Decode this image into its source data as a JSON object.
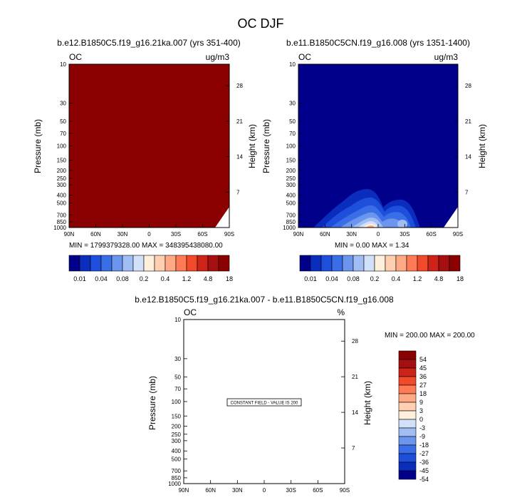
{
  "figure": {
    "title": "OC DJF",
    "panel_left_title": "b.e12.B1850C5.f19_g16.21ka.007 (yrs 351-400)",
    "panel_right_title": "b.e11.B1850C5CN.f19_g16.008 (yrs 1351-1400)",
    "panel_diff_title": "b.e12.B1850C5.f19_g16.21ka.007 - b.e11.B1850C5CN.f19_g16.008"
  },
  "colors": {
    "abs_scale": [
      "#00008b",
      "#0a2dbe",
      "#1e4fdc",
      "#3a6ee6",
      "#6c95ee",
      "#a0bdf4",
      "#d2e1f9",
      "#fff0dc",
      "#ffcfb0",
      "#ffaa84",
      "#ff7a55",
      "#f04a2a",
      "#cd2318",
      "#a50f0f",
      "#8b0000"
    ],
    "diff_scale": [
      "#00008b",
      "#0a2dbe",
      "#1e4fdc",
      "#3a6ee6",
      "#6c95ee",
      "#a0bdf4",
      "#d2e1f9",
      "#fff0dc",
      "#ffcfb0",
      "#ffaa84",
      "#ff7a55",
      "#f04a2a",
      "#cd2318",
      "#a50f0f",
      "#8b0000"
    ]
  },
  "chart_data": [
    {
      "type": "heatmap",
      "title": "b.e12.B1850C5.f19_g16.21ka.007 (yrs 351-400)",
      "variable": "OC",
      "units": "ug/m3",
      "ylabel": "Pressure (mb)",
      "ylabel_right": "Height (km)",
      "x_ticks": [
        "90N",
        "60N",
        "30N",
        "0",
        "30S",
        "60S",
        "90S"
      ],
      "pressure_ticks": [
        "10",
        "30",
        "50",
        "70",
        "100",
        "150",
        "200",
        "250",
        "300",
        "400",
        "500",
        "700",
        "850",
        "1000"
      ],
      "height_ticks": [
        "28",
        "21",
        "14",
        "7"
      ],
      "min_max_text": "MIN = 1799379328.00   MAX = 348395438080.00",
      "field": "uniform maximum (darkest red) over the whole domain, with no data below the surface near the South Pole",
      "colorbar_labels": [
        "0.01",
        "0.04",
        "0.08",
        "0.2",
        "0.4",
        "1.2",
        "4.8",
        "18"
      ]
    },
    {
      "type": "heatmap",
      "title": "b.e11.B1850C5CN.f19_g16.008 (yrs 1351-1400)",
      "variable": "OC",
      "units": "ug/m3",
      "ylabel": "Pressure (mb)",
      "ylabel_right": "Height (km)",
      "x_ticks": [
        "90N",
        "60N",
        "30N",
        "0",
        "30S",
        "60S",
        "90S"
      ],
      "pressure_ticks": [
        "10",
        "30",
        "50",
        "70",
        "100",
        "150",
        "200",
        "250",
        "300",
        "400",
        "500",
        "700",
        "850",
        "1000"
      ],
      "height_ticks": [
        "28",
        "21",
        "14",
        "7"
      ],
      "min_max_text": "MIN =  0.00   MAX =  1.34",
      "field": "low values almost everywhere; maxima in the lower troposphere (below ~600 mb) near 5N and near 25S",
      "colorbar_labels": [
        "0.01",
        "0.04",
        "0.08",
        "0.2",
        "0.4",
        "1.2",
        "4.8",
        "18"
      ]
    },
    {
      "type": "heatmap",
      "title": "b.e12.B1850C5.f19_g16.21ka.007 - b.e11.B1850C5CN.f19_g16.008",
      "variable": "OC",
      "units": "%",
      "ylabel": "Pressure (mb)",
      "ylabel_right": "Height (km)",
      "x_ticks": [
        "90N",
        "60N",
        "30N",
        "0",
        "30S",
        "60S",
        "90S"
      ],
      "pressure_ticks": [
        "10",
        "30",
        "50",
        "70",
        "100",
        "150",
        "200",
        "250",
        "300",
        "400",
        "500",
        "700",
        "850",
        "1000"
      ],
      "height_ticks": [
        "28",
        "21",
        "14",
        "7"
      ],
      "min_max_text": "MIN = 200.00   MAX = 200.00",
      "annotation": "CONSTANT FIELD - VALUE IS 200",
      "colorbar_labels": [
        "54",
        "45",
        "36",
        "27",
        "18",
        "9",
        "3",
        "0",
        "-3",
        "-9",
        "-18",
        "-27",
        "-36",
        "-45",
        "-54"
      ]
    }
  ]
}
